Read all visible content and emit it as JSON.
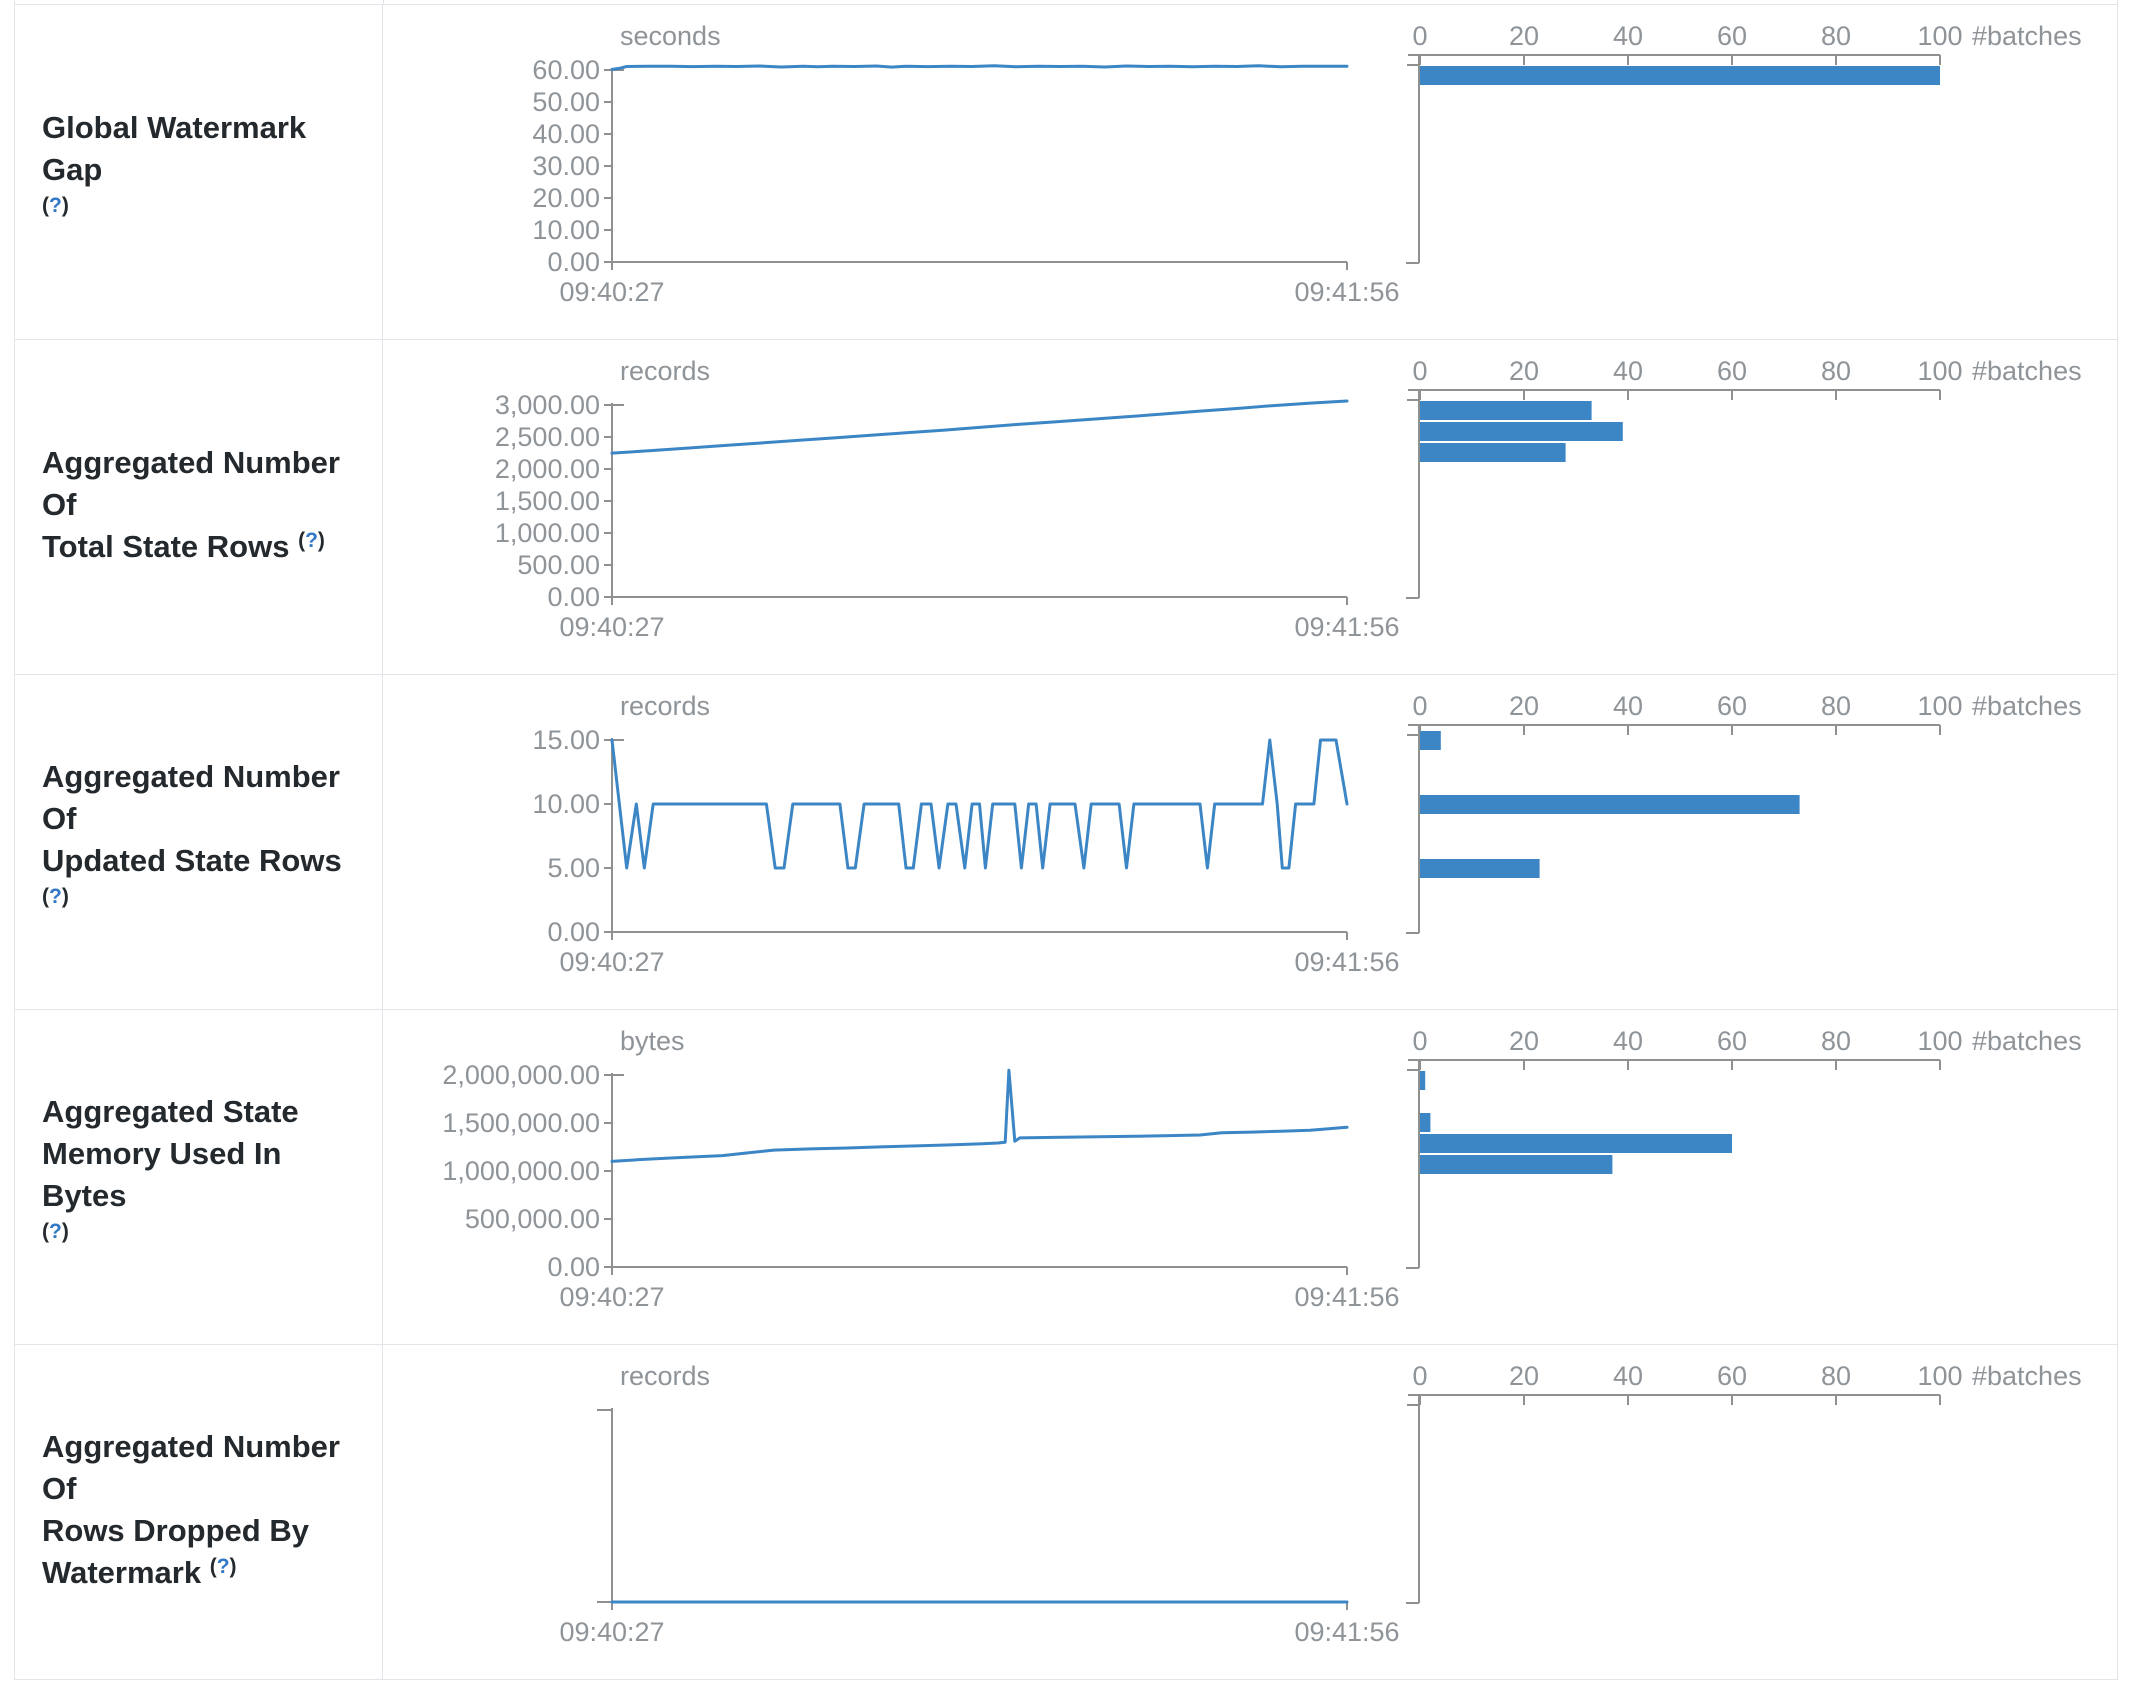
{
  "colors": {
    "accent": "#3c86c6",
    "axis_line": "#909090",
    "axis_text": "#8f9499",
    "label_text": "#24292e",
    "help_blue": "#3178c6",
    "border": "#e2e6ea"
  },
  "histogram_axis": {
    "tick_labels": [
      "0",
      "20",
      "40",
      "60",
      "80",
      "100"
    ],
    "unit_label": "#batches",
    "max": 100
  },
  "rows": [
    {
      "label_lines": [
        "Global Watermark Gap"
      ],
      "help": "(?)",
      "help_inline": false,
      "unit": "seconds",
      "x_start": "09:40:27",
      "x_end": "09:41:56",
      "y_tick_labels": [
        "60.00",
        "50.00",
        "40.00",
        "30.00",
        "20.00",
        "10.00",
        "0.00"
      ],
      "y_max": 60,
      "line_points": [
        [
          0,
          60.2
        ],
        [
          0.01,
          60.5
        ],
        [
          0.02,
          61.1
        ],
        [
          0.05,
          61.15
        ],
        [
          0.08,
          61.2
        ],
        [
          0.11,
          61.05
        ],
        [
          0.14,
          61.2
        ],
        [
          0.17,
          61.1
        ],
        [
          0.2,
          61.25
        ],
        [
          0.23,
          60.95
        ],
        [
          0.26,
          61.2
        ],
        [
          0.28,
          61.0
        ],
        [
          0.3,
          61.2
        ],
        [
          0.33,
          61.1
        ],
        [
          0.36,
          61.25
        ],
        [
          0.38,
          60.9
        ],
        [
          0.4,
          61.2
        ],
        [
          0.43,
          61.05
        ],
        [
          0.46,
          61.2
        ],
        [
          0.49,
          61.1
        ],
        [
          0.52,
          61.3
        ],
        [
          0.55,
          61.0
        ],
        [
          0.58,
          61.2
        ],
        [
          0.61,
          61.1
        ],
        [
          0.64,
          61.2
        ],
        [
          0.67,
          60.95
        ],
        [
          0.7,
          61.25
        ],
        [
          0.73,
          61.1
        ],
        [
          0.76,
          61.2
        ],
        [
          0.79,
          61.0
        ],
        [
          0.82,
          61.2
        ],
        [
          0.85,
          61.1
        ],
        [
          0.88,
          61.3
        ],
        [
          0.91,
          61.0
        ],
        [
          0.94,
          61.2
        ],
        [
          0.97,
          61.15
        ],
        [
          1,
          61.2
        ]
      ],
      "hist_bars": [
        {
          "count": 100,
          "y": 61
        }
      ]
    },
    {
      "label_lines": [
        "Aggregated Number Of",
        "Total State Rows"
      ],
      "help": "(?)",
      "help_inline": true,
      "unit": "records",
      "x_start": "09:40:27",
      "x_end": "09:41:56",
      "y_tick_labels": [
        "3,000.00",
        "2,500.00",
        "2,000.00",
        "1,500.00",
        "1,000.00",
        "500.00",
        "0.00"
      ],
      "y_max": 3000,
      "line_points": [
        [
          0,
          2248
        ],
        [
          0.05,
          2285
        ],
        [
          0.1,
          2325
        ],
        [
          0.15,
          2365
        ],
        [
          0.2,
          2405
        ],
        [
          0.25,
          2445
        ],
        [
          0.3,
          2485
        ],
        [
          0.35,
          2525
        ],
        [
          0.4,
          2565
        ],
        [
          0.45,
          2605
        ],
        [
          0.5,
          2650
        ],
        [
          0.55,
          2695
        ],
        [
          0.6,
          2735
        ],
        [
          0.65,
          2775
        ],
        [
          0.7,
          2815
        ],
        [
          0.75,
          2860
        ],
        [
          0.8,
          2905
        ],
        [
          0.85,
          2945
        ],
        [
          0.9,
          2990
        ],
        [
          0.95,
          3030
        ],
        [
          1,
          3062
        ]
      ],
      "hist_bars": [
        {
          "count": 33,
          "y": 61
        },
        {
          "count": 39,
          "y": 82
        },
        {
          "count": 28,
          "y": 103
        }
      ]
    },
    {
      "label_lines": [
        "Aggregated Number Of",
        "Updated State Rows"
      ],
      "help": "(?)",
      "help_inline": true,
      "unit": "records",
      "x_start": "09:40:27",
      "x_end": "09:41:56",
      "y_tick_labels": [
        "15.00",
        "10.00",
        "5.00",
        "0.00"
      ],
      "y_max": 15,
      "line_points": [
        [
          0,
          15
        ],
        [
          0.02,
          5
        ],
        [
          0.033,
          10
        ],
        [
          0.044,
          5
        ],
        [
          0.056,
          10
        ],
        [
          0.21,
          10
        ],
        [
          0.222,
          5
        ],
        [
          0.234,
          5
        ],
        [
          0.246,
          10
        ],
        [
          0.31,
          10
        ],
        [
          0.321,
          5
        ],
        [
          0.331,
          5
        ],
        [
          0.343,
          10
        ],
        [
          0.39,
          10
        ],
        [
          0.4,
          5
        ],
        [
          0.41,
          5
        ],
        [
          0.421,
          10
        ],
        [
          0.434,
          10
        ],
        [
          0.445,
          5
        ],
        [
          0.457,
          10
        ],
        [
          0.468,
          10
        ],
        [
          0.48,
          5
        ],
        [
          0.49,
          10
        ],
        [
          0.5,
          10
        ],
        [
          0.508,
          5
        ],
        [
          0.518,
          10
        ],
        [
          0.548,
          10
        ],
        [
          0.557,
          5
        ],
        [
          0.567,
          10
        ],
        [
          0.577,
          10
        ],
        [
          0.586,
          5
        ],
        [
          0.596,
          10
        ],
        [
          0.63,
          10
        ],
        [
          0.642,
          5
        ],
        [
          0.652,
          10
        ],
        [
          0.69,
          10
        ],
        [
          0.7,
          5
        ],
        [
          0.71,
          10
        ],
        [
          0.8,
          10
        ],
        [
          0.81,
          5
        ],
        [
          0.82,
          10
        ],
        [
          0.885,
          10
        ],
        [
          0.895,
          15
        ],
        [
          0.905,
          10
        ],
        [
          0.912,
          5
        ],
        [
          0.921,
          5
        ],
        [
          0.93,
          10
        ],
        [
          0.955,
          10
        ],
        [
          0.964,
          15
        ],
        [
          0.985,
          15
        ],
        [
          1,
          10
        ]
      ],
      "hist_bars": [
        {
          "count": 4,
          "y": 56
        },
        {
          "count": 73,
          "y": 120
        },
        {
          "count": 23,
          "y": 184
        }
      ]
    },
    {
      "label_lines": [
        "Aggregated State",
        "Memory Used In Bytes"
      ],
      "help": "(?)",
      "help_inline": false,
      "unit": "bytes",
      "x_start": "09:40:27",
      "x_end": "09:41:56",
      "y_tick_labels": [
        "2,000,000.00",
        "1,500,000.00",
        "1,000,000.00",
        "500,000.00",
        "0.00"
      ],
      "y_max": 2000000,
      "line_points": [
        [
          0,
          1100000
        ],
        [
          0.04,
          1120000
        ],
        [
          0.08,
          1135000
        ],
        [
          0.12,
          1150000
        ],
        [
          0.15,
          1160000
        ],
        [
          0.18,
          1185000
        ],
        [
          0.22,
          1218000
        ],
        [
          0.27,
          1230000
        ],
        [
          0.32,
          1240000
        ],
        [
          0.37,
          1252000
        ],
        [
          0.42,
          1262000
        ],
        [
          0.46,
          1272000
        ],
        [
          0.5,
          1282000
        ],
        [
          0.525,
          1292000
        ],
        [
          0.535,
          1300000
        ],
        [
          0.54,
          2050000
        ],
        [
          0.548,
          1310000
        ],
        [
          0.555,
          1345000
        ],
        [
          0.6,
          1350000
        ],
        [
          0.65,
          1355000
        ],
        [
          0.7,
          1360000
        ],
        [
          0.75,
          1368000
        ],
        [
          0.8,
          1375000
        ],
        [
          0.83,
          1398000
        ],
        [
          0.87,
          1405000
        ],
        [
          0.91,
          1415000
        ],
        [
          0.95,
          1425000
        ],
        [
          1,
          1455000
        ]
      ],
      "hist_bars": [
        {
          "count": 1,
          "y": 61
        },
        {
          "count": 2,
          "y": 103
        },
        {
          "count": 60,
          "y": 124
        },
        {
          "count": 37,
          "y": 145
        }
      ]
    },
    {
      "label_lines": [
        "Aggregated Number Of",
        "Rows Dropped By",
        "Watermark"
      ],
      "help": "(?)",
      "help_inline": true,
      "unit": "records",
      "x_start": "09:40:27",
      "x_end": "09:41:56",
      "y_tick_labels": [],
      "y_max": 1,
      "line_points": [
        [
          0,
          0
        ],
        [
          1,
          0
        ]
      ],
      "hist_bars": []
    }
  ],
  "chart_data": [
    {
      "type": "line",
      "title": "Global Watermark Gap",
      "ylabel": "seconds",
      "x": [
        "09:40:27",
        "09:41:56"
      ],
      "ylim": [
        0,
        60
      ],
      "values_summary": "constant ~61 s across ~100 batches",
      "histogram": {
        "type": "bar",
        "xlabel": "#batches",
        "xlim": [
          0,
          100
        ],
        "bins": [
          {
            "bin_center": 60,
            "count": 100
          }
        ]
      }
    },
    {
      "type": "line",
      "title": "Aggregated Number Of Total State Rows",
      "ylabel": "records",
      "x": [
        "09:40:27",
        "09:41:56"
      ],
      "ylim": [
        0,
        3000
      ],
      "values_summary": "linear growth 2248 -> 3062 records",
      "histogram": {
        "type": "bar",
        "xlabel": "#batches",
        "xlim": [
          0,
          100
        ],
        "bins": [
          {
            "bin_center": 2950,
            "count": 33
          },
          {
            "bin_center": 2650,
            "count": 39
          },
          {
            "bin_center": 2350,
            "count": 28
          }
        ]
      }
    },
    {
      "type": "line",
      "title": "Aggregated Number Of Updated State Rows",
      "ylabel": "records",
      "x": [
        "09:40:27",
        "09:41:56"
      ],
      "ylim": [
        0,
        15
      ],
      "values_summary": "oscillates between 10 and 5, occasional 15",
      "histogram": {
        "type": "bar",
        "xlabel": "#batches",
        "xlim": [
          0,
          100
        ],
        "bins": [
          {
            "bin_center": 15,
            "count": 4
          },
          {
            "bin_center": 10,
            "count": 73
          },
          {
            "bin_center": 5,
            "count": 23
          }
        ]
      }
    },
    {
      "type": "line",
      "title": "Aggregated State Memory Used In Bytes",
      "ylabel": "bytes",
      "x": [
        "09:40:27",
        "09:41:56"
      ],
      "ylim": [
        0,
        2000000
      ],
      "values_summary": "1.10M rising to 1.46M with one spike to ~2.05M",
      "histogram": {
        "type": "bar",
        "xlabel": "#batches",
        "xlim": [
          0,
          100
        ],
        "bins": [
          {
            "bin_center": 2050000,
            "count": 1
          },
          {
            "bin_center": 1600000,
            "count": 2
          },
          {
            "bin_center": 1350000,
            "count": 60
          },
          {
            "bin_center": 1150000,
            "count": 37
          }
        ]
      }
    },
    {
      "type": "line",
      "title": "Aggregated Number Of Rows Dropped By Watermark",
      "ylabel": "records",
      "x": [
        "09:40:27",
        "09:41:56"
      ],
      "ylim": [
        0,
        1
      ],
      "values_summary": "constant 0 records",
      "histogram": {
        "type": "bar",
        "xlabel": "#batches",
        "xlim": [
          0,
          100
        ],
        "bins": []
      }
    }
  ]
}
